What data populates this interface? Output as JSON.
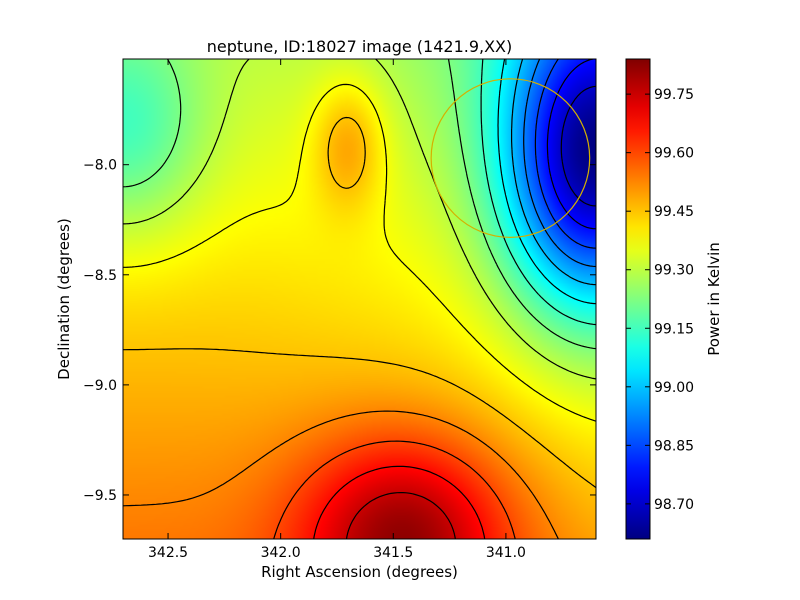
{
  "chart_data": {
    "type": "heatmap",
    "title": "neptune, ID:18027 image (1421.9,XX)",
    "xlabel": "Right Ascension (degrees)",
    "ylabel": "Declination (degrees)",
    "colorbar_label": "Power in Kelvin",
    "xlim": [
      342.7,
      340.6
    ],
    "ylim": [
      -9.7,
      -7.52
    ],
    "x_ticks": [
      342.5,
      342.0,
      341.5,
      341.0
    ],
    "x_tick_labels": [
      "342.5",
      "342.0",
      "341.5",
      "341.0"
    ],
    "y_ticks": [
      -8.0,
      -8.5,
      -9.0,
      -9.5
    ],
    "y_tick_labels": [
      "−8.0",
      "−8.5",
      "−9.0",
      "−9.5"
    ],
    "colorbar_range": [
      98.61,
      99.84
    ],
    "colorbar_ticks": [
      98.7,
      98.85,
      99.0,
      99.15,
      99.3,
      99.45,
      99.6,
      99.75
    ],
    "colorbar_tick_labels": [
      "98.70",
      "98.85",
      "99.00",
      "99.15",
      "99.30",
      "99.45",
      "99.60",
      "99.75"
    ],
    "colormap": "jet",
    "contour_color": "#000000",
    "field_features": [
      {
        "kind": "maximum",
        "ra": 341.45,
        "dec": -9.68,
        "value": 99.84
      },
      {
        "kind": "local-maximum",
        "ra": 341.7,
        "dec": -7.9,
        "value": 99.47
      },
      {
        "kind": "minimum",
        "ra": 340.62,
        "dec": -7.98,
        "value": 98.61
      },
      {
        "kind": "local-minimum",
        "ra": 342.7,
        "dec": -7.85,
        "value": 99.05
      }
    ],
    "beam_circle": {
      "ra": 340.98,
      "dec": -7.97,
      "radius_deg": 0.36,
      "color": "#d4b000"
    }
  }
}
